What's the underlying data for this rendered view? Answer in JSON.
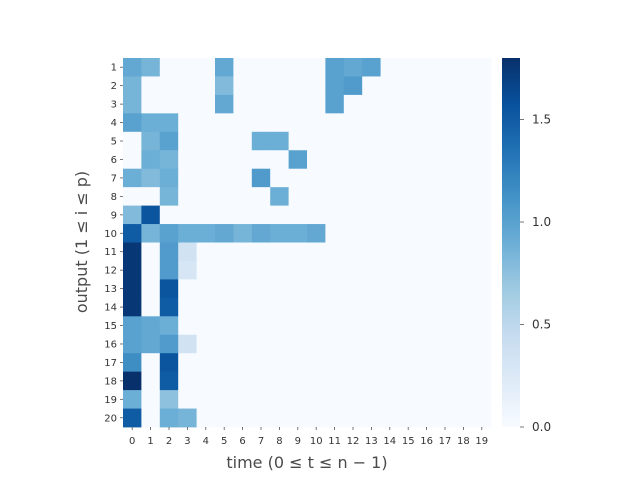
{
  "chart_data": {
    "type": "heatmap",
    "title": "",
    "xlabel": "time (0 ≤ t ≤ n − 1)",
    "ylabel": "output (1 ≤ i ≤ p)",
    "x_categories": [
      "0",
      "1",
      "2",
      "3",
      "4",
      "5",
      "6",
      "7",
      "8",
      "9",
      "10",
      "11",
      "12",
      "13",
      "14",
      "15",
      "16",
      "17",
      "18",
      "19"
    ],
    "y_categories": [
      "1",
      "2",
      "3",
      "4",
      "5",
      "6",
      "7",
      "8",
      "9",
      "10",
      "11",
      "12",
      "13",
      "14",
      "15",
      "16",
      "17",
      "18",
      "19",
      "20"
    ],
    "values": [
      [
        0.95,
        0.85,
        0,
        0,
        0,
        0.95,
        0,
        0,
        0,
        0,
        0,
        1.0,
        0.95,
        1.0,
        0,
        0,
        0,
        0,
        0,
        0
      ],
      [
        0.85,
        0,
        0,
        0,
        0,
        0.8,
        0,
        0,
        0,
        0,
        0,
        1.0,
        1.05,
        0,
        0,
        0,
        0,
        0,
        0,
        0
      ],
      [
        0.85,
        0,
        0,
        0,
        0,
        0.95,
        0,
        0,
        0,
        0,
        0,
        1.0,
        0,
        0,
        0,
        0,
        0,
        0,
        0,
        0
      ],
      [
        1.0,
        0.9,
        0.9,
        0,
        0,
        0,
        0,
        0,
        0,
        0,
        0,
        0,
        0,
        0,
        0,
        0,
        0,
        0,
        0,
        0
      ],
      [
        0,
        0.85,
        1.0,
        0,
        0,
        0,
        0,
        0.9,
        0.9,
        0,
        0,
        0,
        0,
        0,
        0,
        0,
        0,
        0,
        0,
        0
      ],
      [
        0,
        0.9,
        0.85,
        0,
        0,
        0,
        0,
        0,
        0,
        1.0,
        0,
        0,
        0,
        0,
        0,
        0,
        0,
        0,
        0,
        0
      ],
      [
        0.9,
        0.8,
        0.9,
        0,
        0,
        0,
        0,
        1.05,
        0,
        0,
        0,
        0,
        0,
        0,
        0,
        0,
        0,
        0,
        0,
        0
      ],
      [
        0,
        0,
        0.85,
        0,
        0,
        0,
        0,
        0,
        0.9,
        0,
        0,
        0,
        0,
        0,
        0,
        0,
        0,
        0,
        0,
        0
      ],
      [
        0.8,
        1.55,
        0,
        0,
        0,
        0,
        0,
        0,
        0,
        0,
        0,
        0,
        0,
        0,
        0,
        0,
        0,
        0,
        0,
        0
      ],
      [
        1.5,
        0.85,
        1.0,
        0.9,
        0.9,
        0.95,
        0.85,
        0.95,
        0.9,
        0.9,
        0.95,
        0,
        0,
        0,
        0,
        0,
        0,
        0,
        0,
        0
      ],
      [
        1.75,
        0,
        1.05,
        0.35,
        0,
        0,
        0,
        0,
        0,
        0,
        0,
        0,
        0,
        0,
        0,
        0,
        0,
        0,
        0,
        0
      ],
      [
        1.75,
        0,
        1.05,
        0.3,
        0,
        0,
        0,
        0,
        0,
        0,
        0,
        0,
        0,
        0,
        0,
        0,
        0,
        0,
        0,
        0
      ],
      [
        1.75,
        0,
        1.55,
        0,
        0,
        0,
        0,
        0,
        0,
        0,
        0,
        0,
        0,
        0,
        0,
        0,
        0,
        0,
        0,
        0
      ],
      [
        1.75,
        0,
        1.5,
        0,
        0,
        0,
        0,
        0,
        0,
        0,
        0,
        0,
        0,
        0,
        0,
        0,
        0,
        0,
        0,
        0
      ],
      [
        1.0,
        0.95,
        0.9,
        0,
        0,
        0,
        0,
        0,
        0,
        0,
        0,
        0,
        0,
        0,
        0,
        0,
        0,
        0,
        0,
        0
      ],
      [
        1.0,
        0.95,
        1.05,
        0.35,
        0,
        0,
        0,
        0,
        0,
        0,
        0,
        0,
        0,
        0,
        0,
        0,
        0,
        0,
        0,
        0
      ],
      [
        1.15,
        0,
        1.55,
        0,
        0,
        0,
        0,
        0,
        0,
        0,
        0,
        0,
        0,
        0,
        0,
        0,
        0,
        0,
        0,
        0
      ],
      [
        1.8,
        0,
        1.5,
        0,
        0,
        0,
        0,
        0,
        0,
        0,
        0,
        0,
        0,
        0,
        0,
        0,
        0,
        0,
        0,
        0
      ],
      [
        0.9,
        0,
        0.75,
        0,
        0,
        0,
        0,
        0,
        0,
        0,
        0,
        0,
        0,
        0,
        0,
        0,
        0,
        0,
        0,
        0
      ],
      [
        1.5,
        0,
        0.9,
        0.85,
        0,
        0,
        0,
        0,
        0,
        0,
        0,
        0,
        0,
        0,
        0,
        0,
        0,
        0,
        0,
        0
      ]
    ],
    "colormap": "Blues",
    "colorbar": {
      "vmin": 0.0,
      "vmax": 1.8,
      "ticks": [
        0.0,
        0.5,
        1.0,
        1.5
      ],
      "tick_labels": [
        "0.0",
        "0.5",
        "1.0",
        "1.5"
      ]
    },
    "grid": false,
    "legend": "none"
  }
}
